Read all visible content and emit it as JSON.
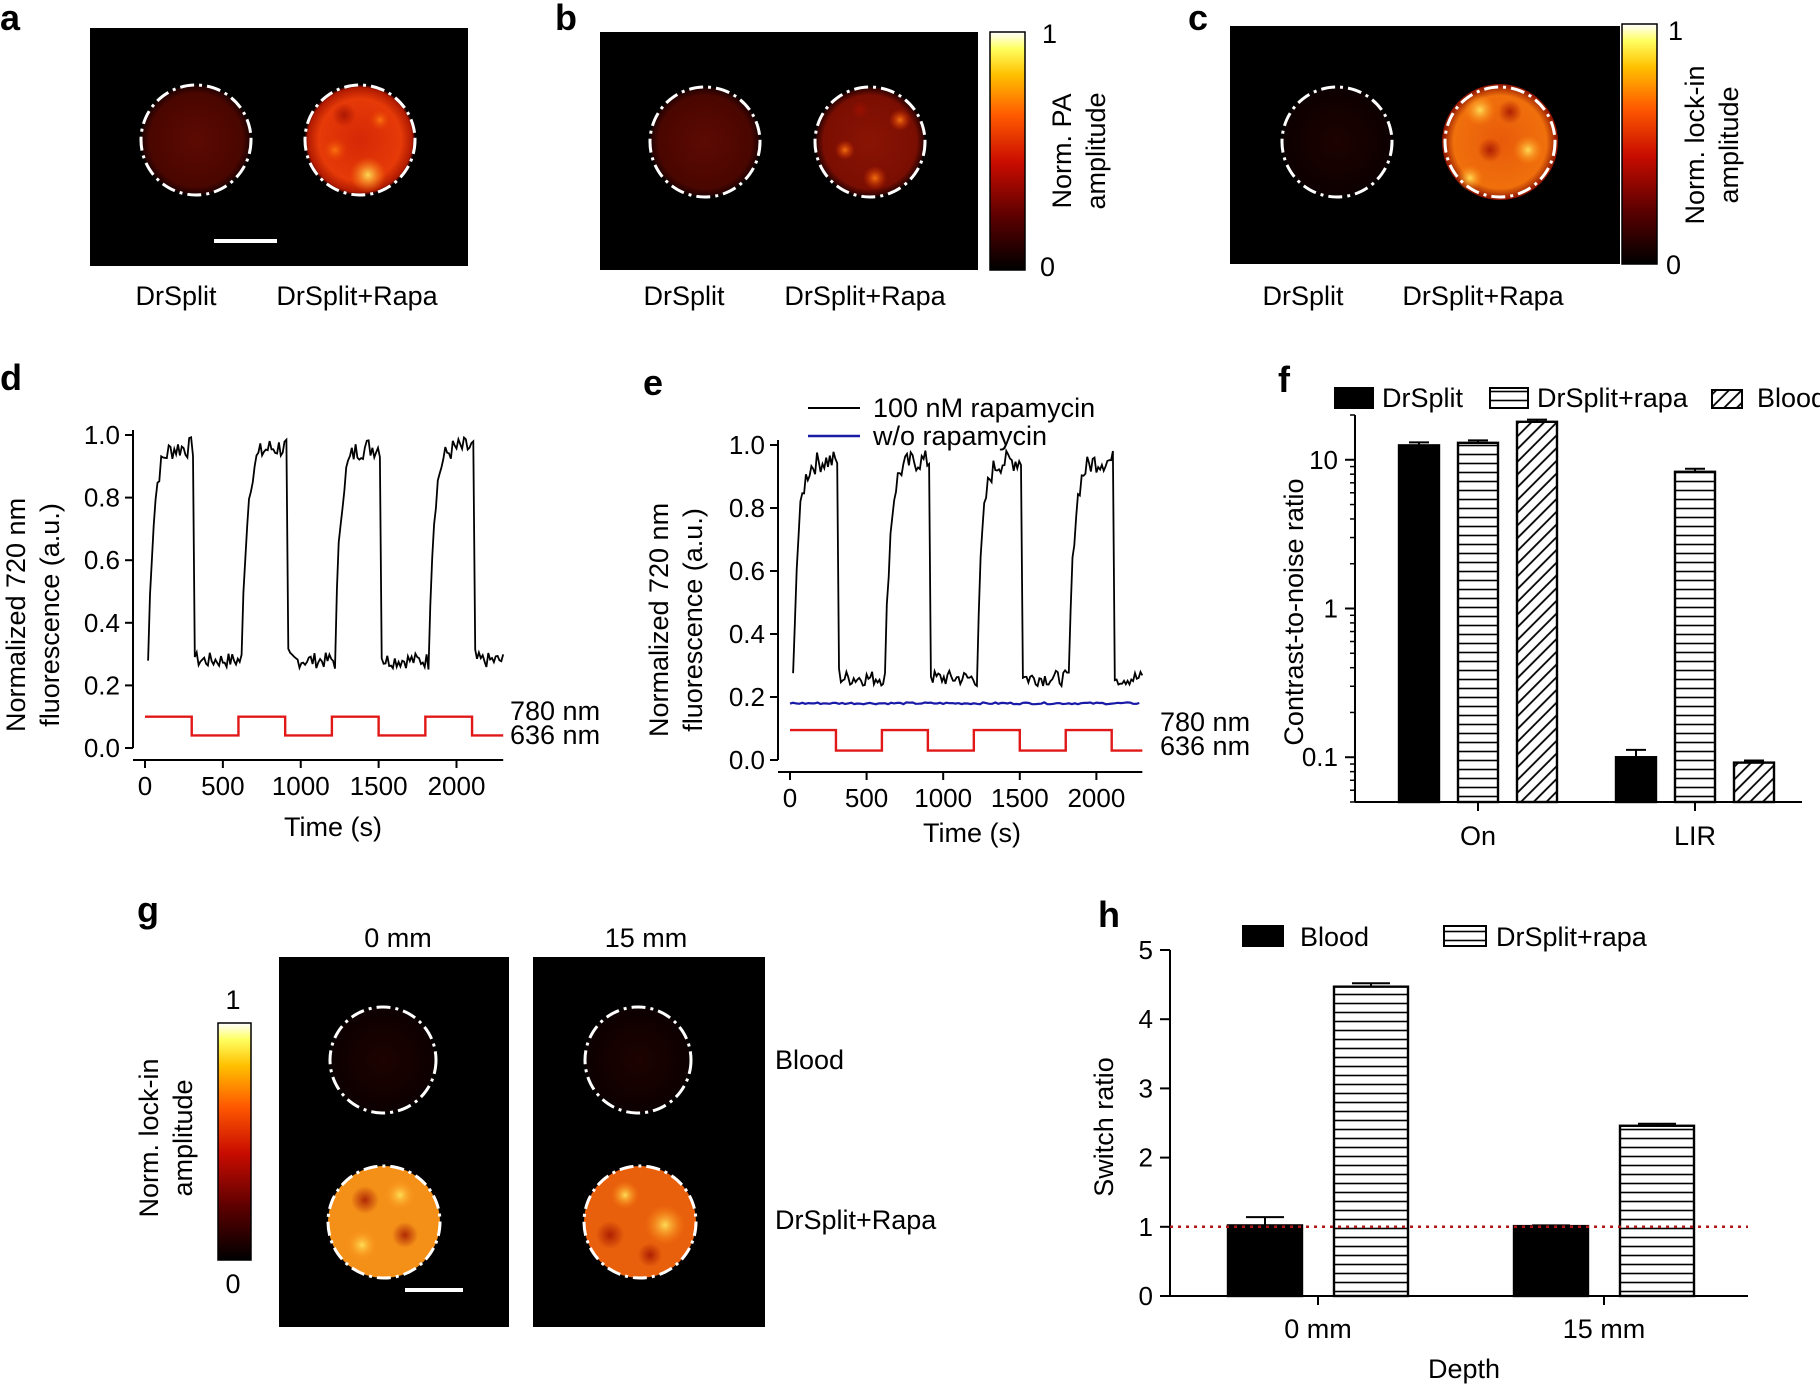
{
  "panels": {
    "a": {
      "letter": "a",
      "labels": [
        "DrSplit",
        "DrSplit+Rapa"
      ]
    },
    "b": {
      "letter": "b",
      "labels": [
        "DrSplit",
        "DrSplit+Rapa"
      ],
      "colorbar": {
        "max": "1",
        "min": "0",
        "title": [
          "Norm. PA",
          "amplitude"
        ]
      }
    },
    "c": {
      "letter": "c",
      "labels": [
        "DrSplit",
        "DrSplit+Rapa"
      ],
      "colorbar": {
        "max": "1",
        "min": "0",
        "title": [
          "Norm. lock-in",
          "amplitude"
        ]
      }
    },
    "g": {
      "letter": "g",
      "columns": [
        "0 mm",
        "15 mm"
      ],
      "rows": [
        "Blood",
        "DrSplit+Rapa"
      ],
      "colorbar": {
        "max": "1",
        "min": "0",
        "title": [
          "Norm. lock-in",
          "amplitude"
        ]
      }
    }
  },
  "chart_data": [
    {
      "id": "d",
      "letter": "d",
      "type": "line",
      "xlabel": "Time (s)",
      "ylabel": [
        "Normalized 720 nm",
        "fluorescence (a.u.)"
      ],
      "xlim": [
        0,
        2350
      ],
      "ylim": [
        0,
        1.0
      ],
      "xticks": [
        0,
        500,
        1000,
        1500,
        2000
      ],
      "yticks": [
        "0.0",
        "0.2",
        "0.4",
        "0.6",
        "0.8",
        "1.0"
      ],
      "period": 600,
      "low": 0.28,
      "high": 0.96,
      "annotations": [
        "780 nm",
        "636 nm"
      ],
      "illumination": {
        "high": 0.1,
        "low": 0.04
      }
    },
    {
      "id": "e",
      "letter": "e",
      "type": "line",
      "xlabel": "Time (s)",
      "ylabel": [
        "Normalized 720 nm",
        "fluorescence (a.u.)"
      ],
      "xlim": [
        0,
        2350
      ],
      "ylim": [
        0,
        1.0
      ],
      "xticks": [
        0,
        500,
        1000,
        1500,
        2000
      ],
      "yticks": [
        "0.0",
        "0.2",
        "0.4",
        "0.6",
        "0.8",
        "1.0"
      ],
      "period": 600,
      "low": 0.26,
      "high": 0.95,
      "baseline_no_rapa": 0.18,
      "legend": [
        "100 nM rapamycin",
        "w/o rapamycin"
      ],
      "series_colors": [
        "#000000",
        "#1a1aa8"
      ],
      "annotations": [
        "780 nm",
        "636 nm"
      ],
      "illumination": {
        "high": 0.095,
        "low": 0.03
      }
    },
    {
      "id": "f",
      "letter": "f",
      "type": "bar",
      "scale": "log",
      "ylabel": "Contrast-to-noise ratio",
      "ylim": [
        0.05,
        20
      ],
      "yticks": [
        "0.1",
        "1",
        "10"
      ],
      "categories": [
        "On",
        "LIR"
      ],
      "series": [
        {
          "name": "DrSplit",
          "values": [
            12.5,
            0.1
          ],
          "errors": [
            0.6,
            0.012
          ]
        },
        {
          "name": "DrSplit+rapa",
          "values": [
            13.0,
            8.3
          ],
          "errors": [
            0.5,
            0.4
          ]
        },
        {
          "name": "Blood",
          "values": [
            18.0,
            0.092
          ],
          "errors": [
            0.6,
            0.003
          ]
        }
      ]
    },
    {
      "id": "h",
      "letter": "h",
      "type": "bar",
      "xlabel": "Depth",
      "ylabel": "Switch ratio",
      "ylim": [
        0,
        5
      ],
      "yticks": [
        "0",
        "1",
        "2",
        "3",
        "4",
        "5"
      ],
      "categories": [
        "0 mm",
        "15 mm"
      ],
      "reference_line": 1,
      "series": [
        {
          "name": "Blood",
          "values": [
            1.02,
            1.01
          ],
          "errors": [
            0.12,
            0.01
          ]
        },
        {
          "name": "DrSplit+rapa",
          "values": [
            4.47,
            2.46
          ],
          "errors": [
            0.05,
            0.03
          ]
        }
      ]
    }
  ]
}
